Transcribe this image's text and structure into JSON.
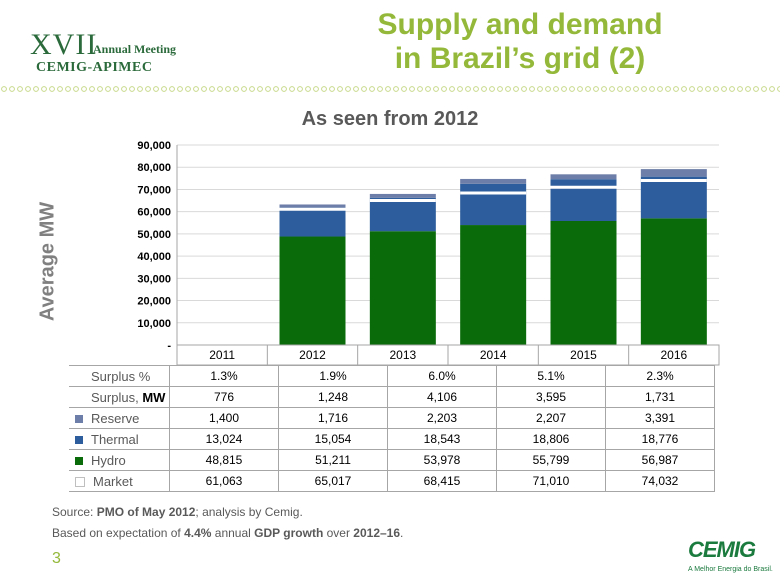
{
  "header": {
    "logo_number": "XVII",
    "logo_event": "Annual Meeting",
    "logo_org": "CEMIG-APIMEC",
    "title_line1": "Supply and demand",
    "title_line2": "in Brazil’s grid (2)",
    "subtitle": "As seen from 2012"
  },
  "colors": {
    "title": "#94b93a",
    "hydro": "#0a6b0a",
    "thermal": "#2d5d9c",
    "reserve": "#6d7fa8",
    "surplus": "#5a6b8c",
    "market_line": "#ffffff"
  },
  "chart_data": {
    "type": "bar",
    "stacked": true,
    "ylabel": "Average MW",
    "ylim": [
      0,
      90000
    ],
    "yticks": [
      "-",
      "10,000",
      "20,000",
      "30,000",
      "40,000",
      "50,000",
      "60,000",
      "70,000",
      "80,000",
      "90,000"
    ],
    "categories": [
      "2011",
      "2012",
      "2013",
      "2014",
      "2015",
      "2016"
    ],
    "series": [
      {
        "name": "Hydro",
        "values": [
          null,
          48815,
          51211,
          53978,
          55799,
          56987
        ]
      },
      {
        "name": "Thermal",
        "values": [
          null,
          13024,
          15054,
          18543,
          18806,
          18776
        ]
      },
      {
        "name": "Reserve",
        "values": [
          null,
          1400,
          1716,
          2203,
          2207,
          3391
        ]
      }
    ],
    "market": [
      null,
      61063,
      65017,
      68415,
      71010,
      74032
    ],
    "grid": true
  },
  "table": {
    "rows": [
      {
        "label": "Surplus %",
        "label_bold": "",
        "swatch": "none",
        "values": [
          "",
          "1.3%",
          "1.9%",
          "6.0%",
          "5.1%",
          "2.3%"
        ]
      },
      {
        "label": "Surplus, ",
        "label_bold": "MW",
        "swatch": "none",
        "values": [
          "",
          "776",
          "1,248",
          "4,106",
          "3,595",
          "1,731"
        ]
      },
      {
        "label": "Reserve",
        "label_bold": "",
        "swatch": "#6d7fa8",
        "values": [
          "",
          "1,400",
          "1,716",
          "2,203",
          "2,207",
          "3,391"
        ]
      },
      {
        "label": "Thermal",
        "label_bold": "",
        "swatch": "#2d5d9c",
        "values": [
          "",
          "13,024",
          "15,054",
          "18,543",
          "18,806",
          "18,776"
        ]
      },
      {
        "label": "Hydro",
        "label_bold": "",
        "swatch": "#0a6b0a",
        "values": [
          "",
          "48,815",
          "51,211",
          "53,978",
          "55,799",
          "56,987"
        ]
      },
      {
        "label": "Market",
        "label_bold": "",
        "swatch": "#ffffff",
        "values": [
          "",
          "61,063",
          "65,017",
          "68,415",
          "71,010",
          "74,032"
        ]
      }
    ]
  },
  "source": {
    "prefix": "Source: ",
    "pmo": "PMO of May 2012",
    "suffix": "; analysis by Cemig.",
    "basis_prefix": "Based on expectation of ",
    "growth": "4.4%",
    "basis_mid1": " annual ",
    "gdp": "GDP growth",
    "basis_mid2": " over ",
    "period": "2012–16",
    "basis_end": "."
  },
  "footer": {
    "page_number": "3",
    "brand": "CEMIG",
    "brand_tagline": "A Melhor Energia do Brasil."
  }
}
